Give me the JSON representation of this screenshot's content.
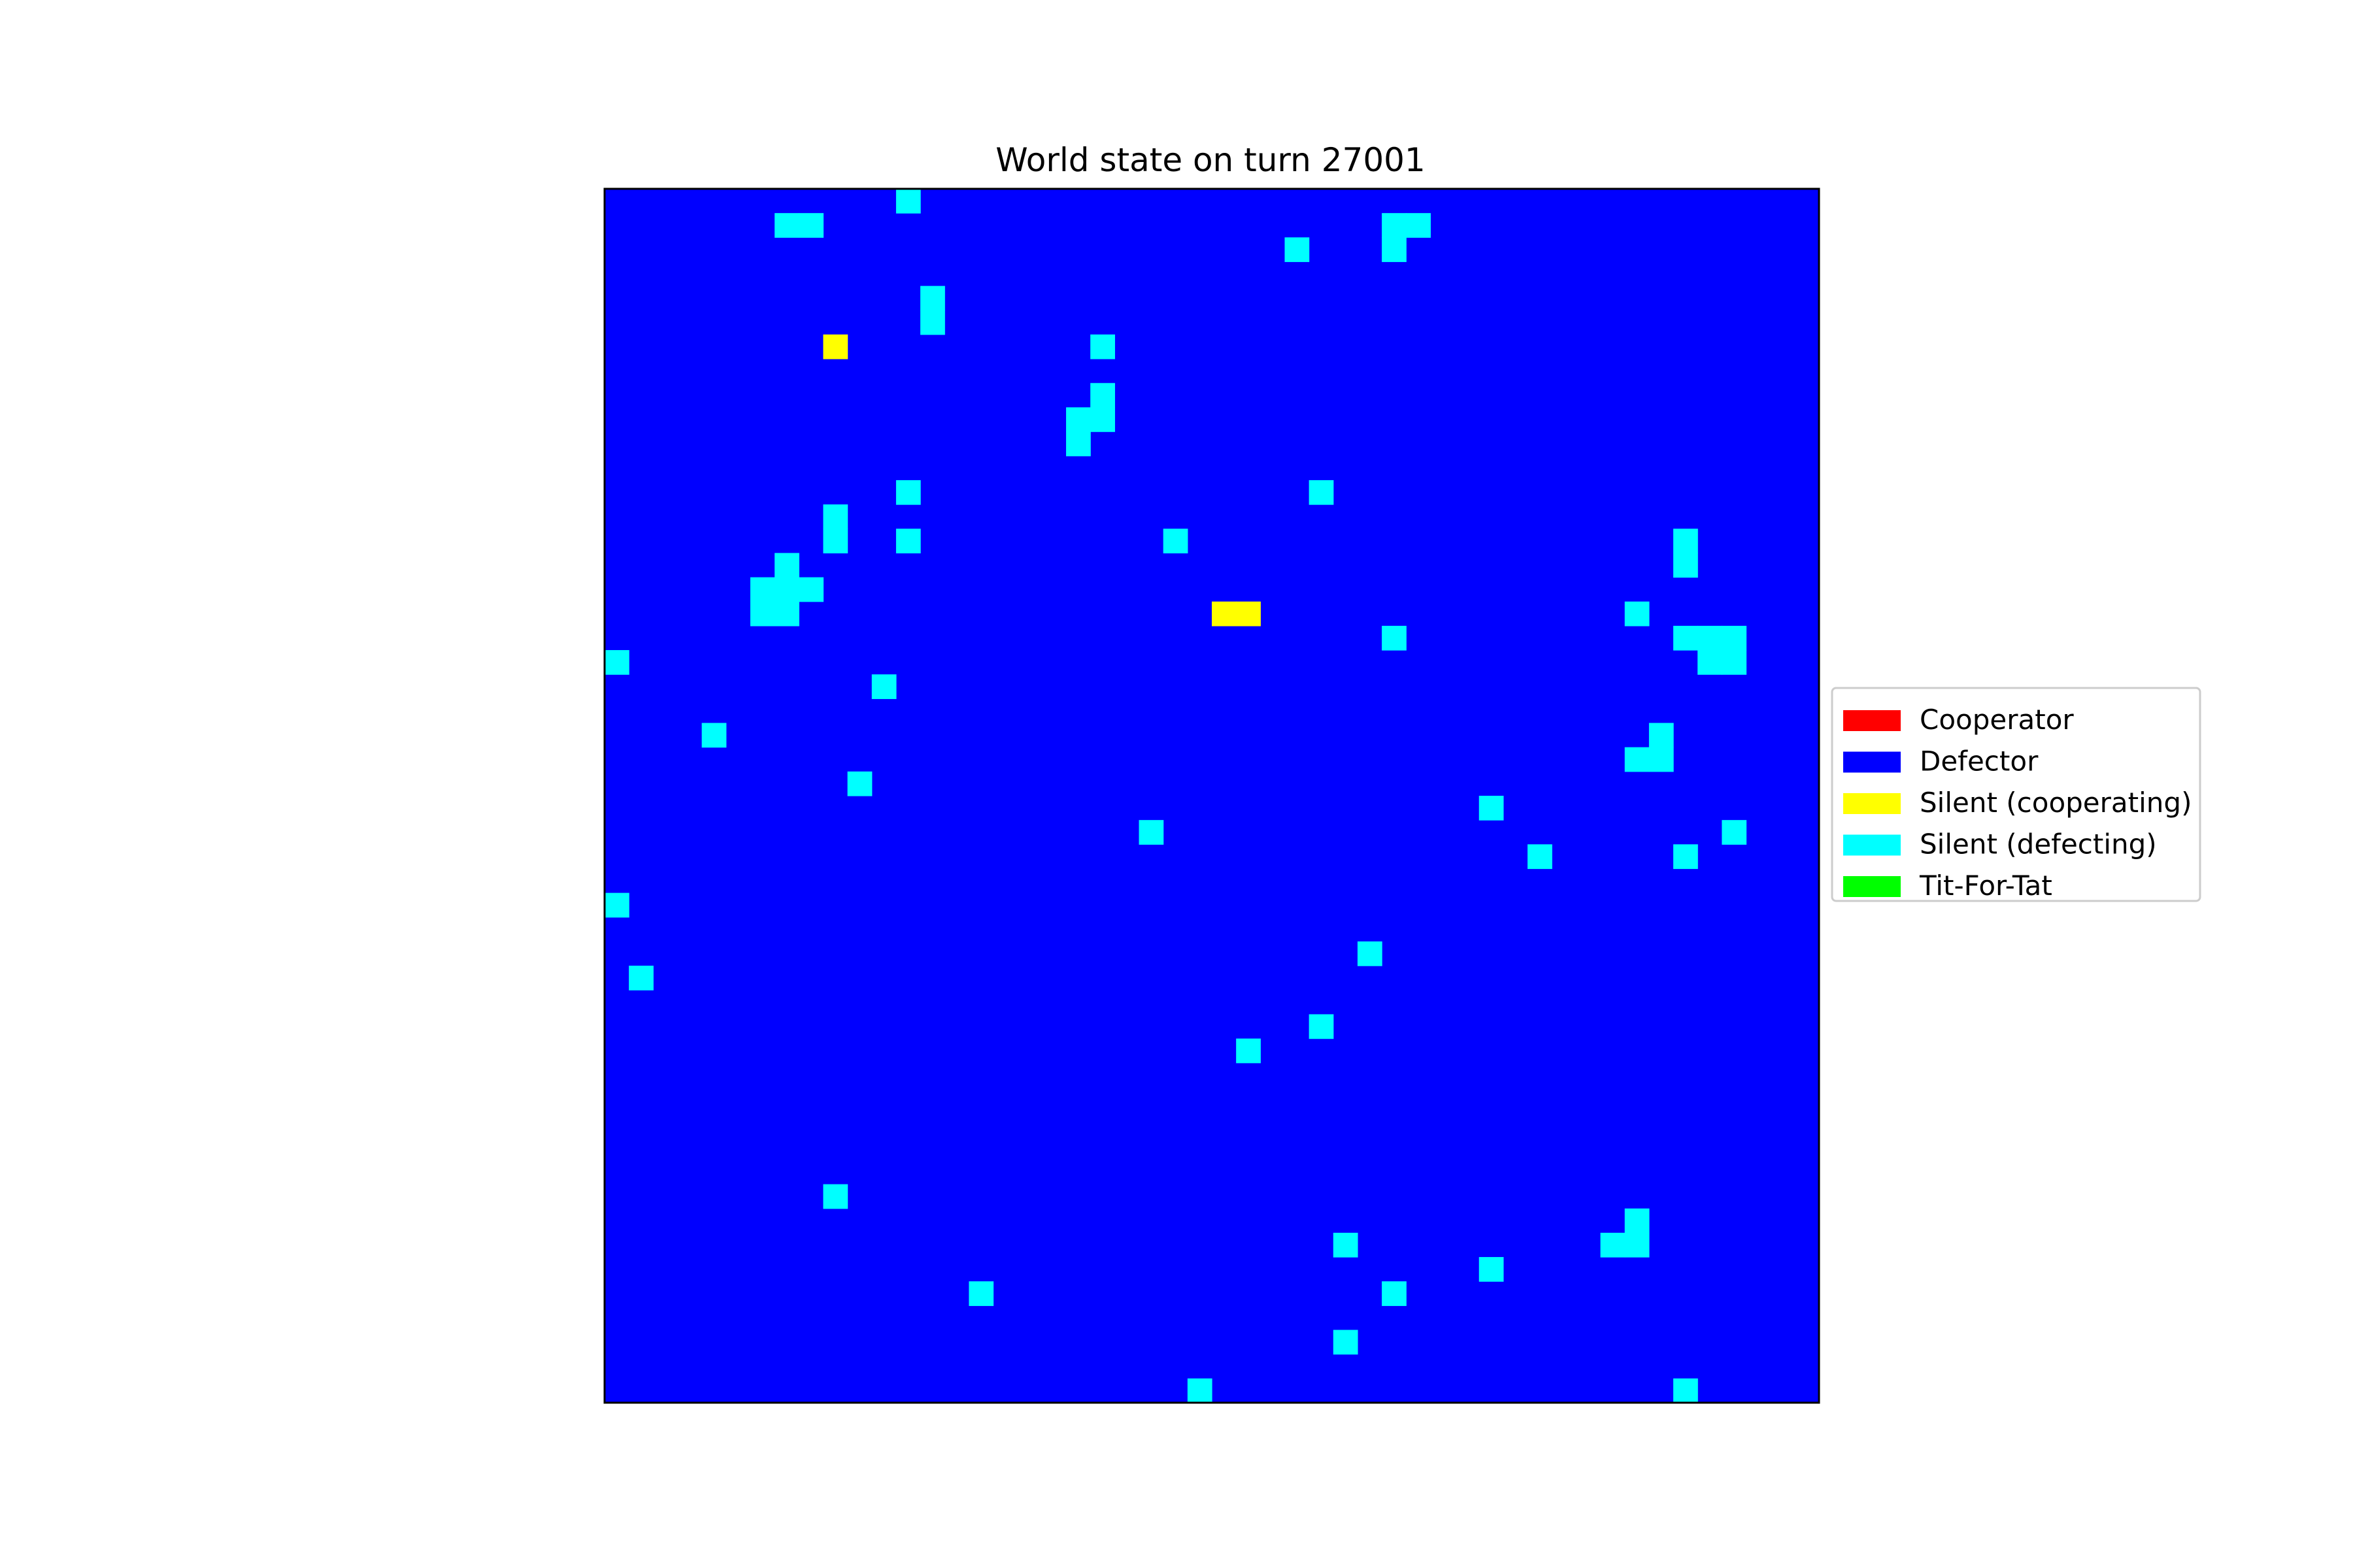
{
  "chart_data": {
    "type": "heatmap",
    "title": "World state on turn 27001",
    "grid_size": [
      50,
      50
    ],
    "background_state": "Defector",
    "legend": {
      "placement": "right",
      "entries": [
        {
          "label": "Cooperator",
          "color": "#ff0000"
        },
        {
          "label": "Defector",
          "color": "#0000ff"
        },
        {
          "label": "Silent (cooperating)",
          "color": "#ffff00"
        },
        {
          "label": "Silent (defecting)",
          "color": "#00ffff"
        },
        {
          "label": "Tit-For-Tat",
          "color": "#00ff00"
        }
      ]
    },
    "cells": [
      {
        "state": "Silent (defecting)",
        "col": 12,
        "row": 0
      },
      {
        "state": "Silent (defecting)",
        "col": 7,
        "row": 1
      },
      {
        "state": "Silent (defecting)",
        "col": 8,
        "row": 1
      },
      {
        "state": "Silent (defecting)",
        "col": 32,
        "row": 1
      },
      {
        "state": "Silent (defecting)",
        "col": 33,
        "row": 1
      },
      {
        "state": "Silent (defecting)",
        "col": 28,
        "row": 2
      },
      {
        "state": "Silent (defecting)",
        "col": 32,
        "row": 2
      },
      {
        "state": "Silent (defecting)",
        "col": 13,
        "row": 4
      },
      {
        "state": "Silent (defecting)",
        "col": 13,
        "row": 5
      },
      {
        "state": "Silent (cooperating)",
        "col": 9,
        "row": 6
      },
      {
        "state": "Silent (defecting)",
        "col": 20,
        "row": 6
      },
      {
        "state": "Silent (defecting)",
        "col": 20,
        "row": 8
      },
      {
        "state": "Silent (defecting)",
        "col": 19,
        "row": 9
      },
      {
        "state": "Silent (defecting)",
        "col": 20,
        "row": 9
      },
      {
        "state": "Silent (defecting)",
        "col": 19,
        "row": 10
      },
      {
        "state": "Silent (defecting)",
        "col": 12,
        "row": 12
      },
      {
        "state": "Silent (defecting)",
        "col": 29,
        "row": 12
      },
      {
        "state": "Silent (defecting)",
        "col": 9,
        "row": 13
      },
      {
        "state": "Silent (defecting)",
        "col": 9,
        "row": 14
      },
      {
        "state": "Silent (defecting)",
        "col": 12,
        "row": 14
      },
      {
        "state": "Silent (defecting)",
        "col": 23,
        "row": 14
      },
      {
        "state": "Silent (defecting)",
        "col": 44,
        "row": 14
      },
      {
        "state": "Silent (defecting)",
        "col": 44,
        "row": 15
      },
      {
        "state": "Silent (defecting)",
        "col": 7,
        "row": 15
      },
      {
        "state": "Silent (defecting)",
        "col": 6,
        "row": 16
      },
      {
        "state": "Silent (defecting)",
        "col": 7,
        "row": 16
      },
      {
        "state": "Silent (defecting)",
        "col": 8,
        "row": 16
      },
      {
        "state": "Silent (defecting)",
        "col": 6,
        "row": 17
      },
      {
        "state": "Silent (defecting)",
        "col": 7,
        "row": 17
      },
      {
        "state": "Silent (cooperating)",
        "col": 25,
        "row": 17
      },
      {
        "state": "Silent (cooperating)",
        "col": 26,
        "row": 17
      },
      {
        "state": "Silent (defecting)",
        "col": 42,
        "row": 17
      },
      {
        "state": "Silent (defecting)",
        "col": 32,
        "row": 18
      },
      {
        "state": "Silent (defecting)",
        "col": 44,
        "row": 18
      },
      {
        "state": "Silent (defecting)",
        "col": 45,
        "row": 18
      },
      {
        "state": "Silent (defecting)",
        "col": 46,
        "row": 18
      },
      {
        "state": "Silent (defecting)",
        "col": 0,
        "row": 19
      },
      {
        "state": "Silent (defecting)",
        "col": 45,
        "row": 19
      },
      {
        "state": "Silent (defecting)",
        "col": 46,
        "row": 19
      },
      {
        "state": "Silent (defecting)",
        "col": 11,
        "row": 20
      },
      {
        "state": "Silent (defecting)",
        "col": 4,
        "row": 22
      },
      {
        "state": "Silent (defecting)",
        "col": 43,
        "row": 22
      },
      {
        "state": "Silent (defecting)",
        "col": 42,
        "row": 23
      },
      {
        "state": "Silent (defecting)",
        "col": 43,
        "row": 23
      },
      {
        "state": "Silent (defecting)",
        "col": 10,
        "row": 24
      },
      {
        "state": "Silent (defecting)",
        "col": 36,
        "row": 25
      },
      {
        "state": "Silent (defecting)",
        "col": 22,
        "row": 26
      },
      {
        "state": "Silent (defecting)",
        "col": 46,
        "row": 26
      },
      {
        "state": "Silent (defecting)",
        "col": 38,
        "row": 27
      },
      {
        "state": "Silent (defecting)",
        "col": 44,
        "row": 27
      },
      {
        "state": "Silent (defecting)",
        "col": 0,
        "row": 29
      },
      {
        "state": "Silent (defecting)",
        "col": 31,
        "row": 31
      },
      {
        "state": "Silent (defecting)",
        "col": 1,
        "row": 32
      },
      {
        "state": "Silent (defecting)",
        "col": 29,
        "row": 34
      },
      {
        "state": "Silent (defecting)",
        "col": 26,
        "row": 35
      },
      {
        "state": "Silent (defecting)",
        "col": 9,
        "row": 41
      },
      {
        "state": "Silent (defecting)",
        "col": 42,
        "row": 42
      },
      {
        "state": "Silent (defecting)",
        "col": 30,
        "row": 43
      },
      {
        "state": "Silent (defecting)",
        "col": 41,
        "row": 43
      },
      {
        "state": "Silent (defecting)",
        "col": 42,
        "row": 43
      },
      {
        "state": "Silent (defecting)",
        "col": 36,
        "row": 44
      },
      {
        "state": "Silent (defecting)",
        "col": 15,
        "row": 45
      },
      {
        "state": "Silent (defecting)",
        "col": 32,
        "row": 45
      },
      {
        "state": "Silent (defecting)",
        "col": 30,
        "row": 47
      },
      {
        "state": "Silent (defecting)",
        "col": 24,
        "row": 49
      },
      {
        "state": "Silent (defecting)",
        "col": 44,
        "row": 49
      }
    ]
  }
}
